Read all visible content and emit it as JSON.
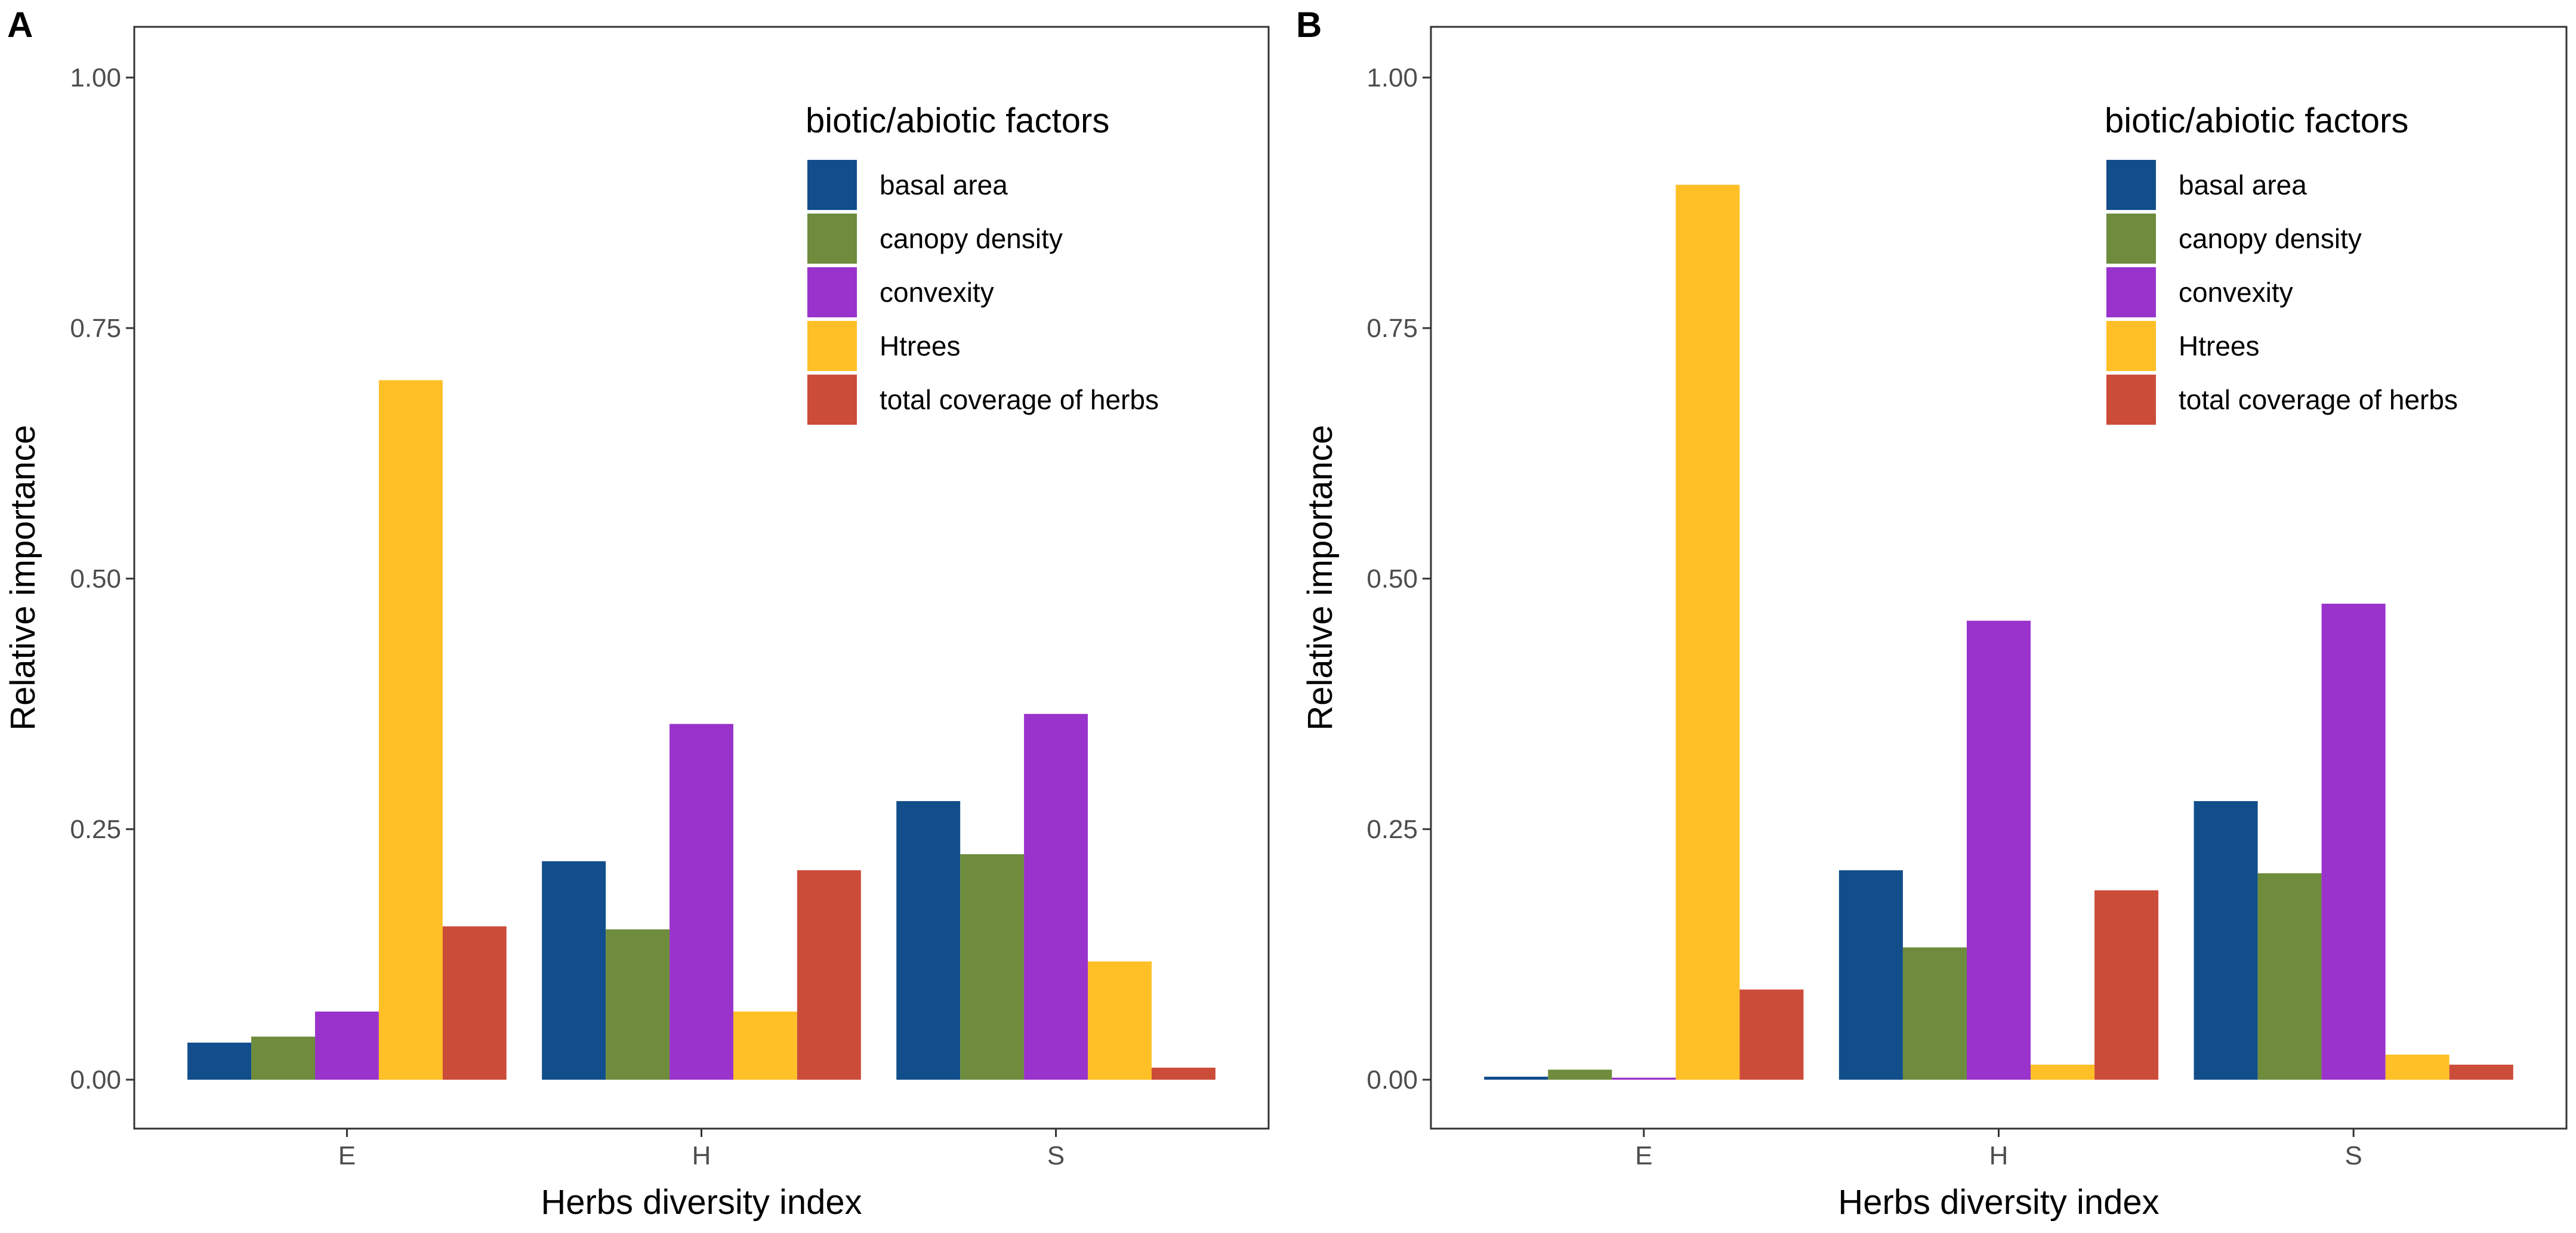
{
  "chart_data": [
    {
      "type": "bar",
      "panel_label": "A",
      "xlabel": "Herbs diversity index",
      "ylabel": "Relative importance",
      "categories": [
        "E",
        "H",
        "S"
      ],
      "ylim": [
        0,
        1.05
      ],
      "yticks": [
        "0.00",
        "0.25",
        "0.50",
        "0.75",
        "1.00"
      ],
      "grid": false,
      "legend_title": "biotic/abiotic factors",
      "legend_position": "top-right",
      "series": [
        {
          "name": "basal area",
          "color": "#124E8C",
          "values": [
            0.037,
            0.218,
            0.278
          ]
        },
        {
          "name": "canopy density",
          "color": "#6E8C3C",
          "values": [
            0.043,
            0.15,
            0.225
          ]
        },
        {
          "name": "convexity",
          "color": "#9933CC",
          "values": [
            0.068,
            0.355,
            0.365
          ]
        },
        {
          "name": "Htrees",
          "color": "#FFBF26",
          "values": [
            0.698,
            0.068,
            0.118
          ]
        },
        {
          "name": "total coverage of herbs",
          "color": "#CC4C3A",
          "values": [
            0.153,
            0.209,
            0.012
          ]
        }
      ]
    },
    {
      "type": "bar",
      "panel_label": "B",
      "xlabel": "Herbs diversity index",
      "ylabel": "Relative importance",
      "categories": [
        "E",
        "H",
        "S"
      ],
      "ylim": [
        0,
        1.05
      ],
      "yticks": [
        "0.00",
        "0.25",
        "0.50",
        "0.75",
        "1.00"
      ],
      "grid": false,
      "legend_title": "biotic/abiotic factors",
      "legend_position": "top-right",
      "series": [
        {
          "name": "basal area",
          "color": "#124E8C",
          "values": [
            0.003,
            0.209,
            0.278
          ]
        },
        {
          "name": "canopy density",
          "color": "#6E8C3C",
          "values": [
            0.01,
            0.132,
            0.206
          ]
        },
        {
          "name": "convexity",
          "color": "#9933CC",
          "values": [
            0.002,
            0.458,
            0.475
          ]
        },
        {
          "name": "Htrees",
          "color": "#FFBF26",
          "values": [
            0.893,
            0.015,
            0.025
          ]
        },
        {
          "name": "total coverage of herbs",
          "color": "#CC4C3A",
          "values": [
            0.09,
            0.189,
            0.015
          ]
        }
      ]
    }
  ]
}
